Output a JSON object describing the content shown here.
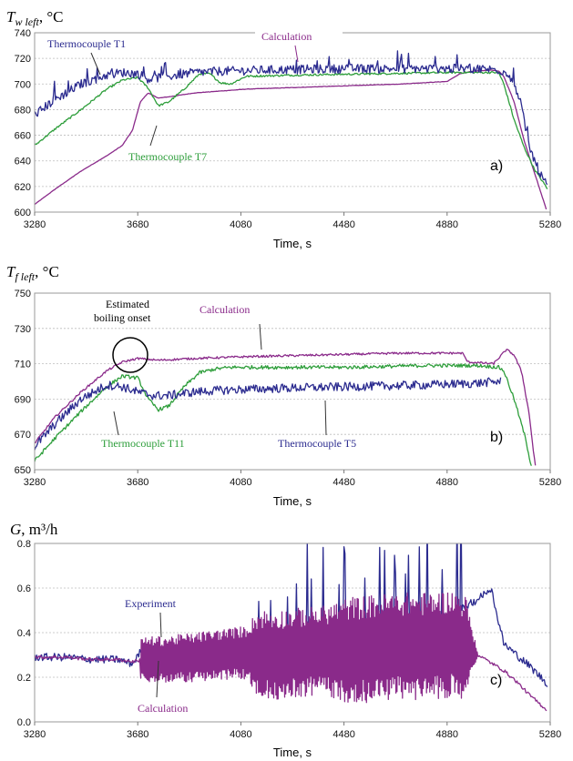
{
  "chart_data": [
    {
      "type": "line",
      "panel_label": "a)",
      "ylabel_symbol": "T",
      "ylabel_sub": "w left",
      "ylabel_unit": ", °C",
      "xlabel": "Time, s",
      "xlim": [
        3280,
        5280
      ],
      "ylim": [
        600,
        740
      ],
      "x_ticks": [
        3280,
        3680,
        4080,
        4480,
        4880,
        5280
      ],
      "y_ticks": [
        600,
        620,
        640,
        660,
        680,
        700,
        720,
        740
      ],
      "grid": "horizontal",
      "series": [
        {
          "name": "Thermocouple T1",
          "color": "#2b2b8f",
          "noise": 7,
          "x": [
            3280,
            3360,
            3460,
            3560,
            3620,
            3680,
            3720,
            3800,
            3900,
            4000,
            4200,
            4500,
            4800,
            5000,
            5080,
            5120,
            5160,
            5200,
            5240,
            5270
          ],
          "y": [
            676,
            688,
            700,
            707,
            709,
            708,
            704,
            706,
            709,
            710,
            711,
            712,
            712,
            712,
            711,
            708,
            690,
            650,
            630,
            620
          ]
        },
        {
          "name": "Thermocouple T7",
          "color": "#2e9e3b",
          "noise": 1.5,
          "x": [
            3280,
            3360,
            3460,
            3560,
            3620,
            3680,
            3720,
            3760,
            3800,
            3860,
            3920,
            3960,
            4000,
            4040,
            4100,
            4300,
            4600,
            4900,
            5080,
            5100,
            5140,
            5180,
            5220,
            5270
          ],
          "y": [
            652,
            665,
            680,
            696,
            703,
            705,
            697,
            683,
            686,
            696,
            708,
            708,
            701,
            700,
            706,
            707,
            708,
            709,
            709,
            700,
            672,
            650,
            633,
            618
          ]
        },
        {
          "name": "Calculation",
          "color": "#8a2a8a",
          "noise": 0.3,
          "x": [
            3280,
            3360,
            3460,
            3560,
            3620,
            3660,
            3690,
            3720,
            3760,
            3800,
            3900,
            4100,
            4400,
            4700,
            4880,
            4930,
            4980,
            5050,
            5080,
            5100,
            5140,
            5180,
            5220,
            5265
          ],
          "y": [
            606,
            618,
            632,
            644,
            652,
            664,
            686,
            693,
            689,
            690,
            693,
            696,
            698,
            700,
            702,
            708,
            710,
            711,
            710,
            706,
            686,
            655,
            630,
            602
          ]
        }
      ],
      "annotations": [
        {
          "text": "Thermocouple T1",
          "color": "#2b2b8f"
        },
        {
          "text": "Calculation",
          "color": "#8a2a8a"
        },
        {
          "text": "Thermocouple T7",
          "color": "#2e9e3b"
        }
      ]
    },
    {
      "type": "line",
      "panel_label": "b)",
      "ylabel_symbol": "T",
      "ylabel_sub": "f left",
      "ylabel_unit": ", °C",
      "xlabel": "Time, s",
      "xlim": [
        3280,
        5280
      ],
      "ylim": [
        650,
        750
      ],
      "x_ticks": [
        3280,
        3680,
        4080,
        4480,
        4880,
        5280
      ],
      "y_ticks": [
        650,
        670,
        690,
        710,
        730,
        750
      ],
      "grid": "horizontal",
      "series": [
        {
          "name": "Thermocouple T5",
          "color": "#2b2b8f",
          "noise": 5,
          "x": [
            3280,
            3360,
            3460,
            3560,
            3620,
            3680,
            3740,
            3800,
            3900,
            4000,
            4200,
            4500,
            4800,
            5000,
            5080,
            5090
          ],
          "y": [
            663,
            676,
            690,
            698,
            697,
            694,
            692,
            692,
            694,
            695,
            696,
            697,
            698,
            699,
            700,
            700
          ]
        },
        {
          "name": "Thermocouple T11",
          "color": "#2e9e3b",
          "noise": 2,
          "x": [
            3280,
            3360,
            3460,
            3560,
            3620,
            3680,
            3720,
            3760,
            3800,
            3860,
            3920,
            3980,
            4040,
            4200,
            4500,
            4800,
            5000,
            5080,
            5100,
            5140,
            5180,
            5210
          ],
          "y": [
            655,
            668,
            683,
            697,
            703,
            702,
            690,
            684,
            686,
            697,
            705,
            707,
            708,
            708,
            708,
            709,
            709,
            708,
            706,
            690,
            670,
            650
          ]
        },
        {
          "name": "Calculation",
          "color": "#8a2a8a",
          "noise": 1.2,
          "x": [
            3280,
            3360,
            3460,
            3560,
            3620,
            3680,
            3760,
            3900,
            4100,
            4400,
            4700,
            4940,
            4960,
            5060,
            5110,
            5140,
            5170,
            5200,
            5215,
            5225
          ],
          "y": [
            665,
            680,
            694,
            706,
            711,
            713,
            712,
            713,
            714,
            715,
            716,
            716,
            711,
            710,
            718,
            715,
            705,
            680,
            660,
            650
          ]
        }
      ],
      "annotations": [
        {
          "text": "Estimated",
          "color": "#000000"
        },
        {
          "text": "boiling onset",
          "color": "#000000"
        },
        {
          "text": "Calculation",
          "color": "#8a2a8a"
        },
        {
          "text": "Thermocouple T11",
          "color": "#2e9e3b"
        },
        {
          "text": "Thermocouple T5",
          "color": "#2b2b8f"
        }
      ]
    },
    {
      "type": "line",
      "panel_label": "c)",
      "ylabel_symbol": "G",
      "ylabel_sub": "",
      "ylabel_unit": ", m³/h",
      "xlabel": "Time, s",
      "xlim": [
        3280,
        5280
      ],
      "ylim": [
        0.0,
        0.8
      ],
      "x_ticks": [
        3280,
        3680,
        4080,
        4480,
        4880,
        5280
      ],
      "y_ticks": [
        "0.0",
        "0.2",
        "0.4",
        "0.6",
        "0.8"
      ],
      "grid": "horizontal",
      "series": [
        {
          "name": "Experiment",
          "color": "#2b2b8f",
          "noise": 0.035,
          "x": [
            3280,
            3400,
            3500,
            3600,
            3660,
            3700,
            3800,
            3900,
            4000,
            4100,
            4200,
            4300,
            4400,
            4500,
            4600,
            4700,
            4800,
            4900,
            5000,
            5050,
            5100,
            5150,
            5200,
            5270
          ],
          "y": [
            0.29,
            0.29,
            0.28,
            0.28,
            0.26,
            0.33,
            0.32,
            0.32,
            0.31,
            0.3,
            0.32,
            0.35,
            0.37,
            0.4,
            0.42,
            0.44,
            0.45,
            0.48,
            0.55,
            0.6,
            0.35,
            0.3,
            0.25,
            0.17
          ]
        },
        {
          "name": "Calculation",
          "color": "#8a2a8a",
          "noise": 0.015,
          "x": [
            3280,
            3400,
            3500,
            3600,
            3660,
            3700,
            3800,
            3900,
            4000,
            4100,
            4200,
            4300,
            4400,
            4500,
            4600,
            4700,
            4800,
            4900,
            4960,
            5000,
            5100,
            5150,
            5200,
            5270
          ],
          "y": [
            0.29,
            0.29,
            0.28,
            0.28,
            0.27,
            0.28,
            0.28,
            0.29,
            0.3,
            0.31,
            0.3,
            0.31,
            0.32,
            0.32,
            0.33,
            0.34,
            0.34,
            0.35,
            0.33,
            0.3,
            0.23,
            0.18,
            0.12,
            0.05
          ]
        }
      ],
      "oscillation": {
        "series": "Calculation",
        "from": 3690,
        "to": 5000,
        "amplitude": [
          [
            3690,
            0.1
          ],
          [
            4100,
            0.12
          ],
          [
            4150,
            0.2
          ],
          [
            4400,
            0.2
          ],
          [
            4500,
            0.24
          ],
          [
            4950,
            0.24
          ],
          [
            5000,
            0.0
          ]
        ]
      },
      "annotations": [
        {
          "text": "Experiment",
          "color": "#2b2b8f"
        },
        {
          "text": "Calculation",
          "color": "#8a2a8a"
        }
      ]
    }
  ]
}
